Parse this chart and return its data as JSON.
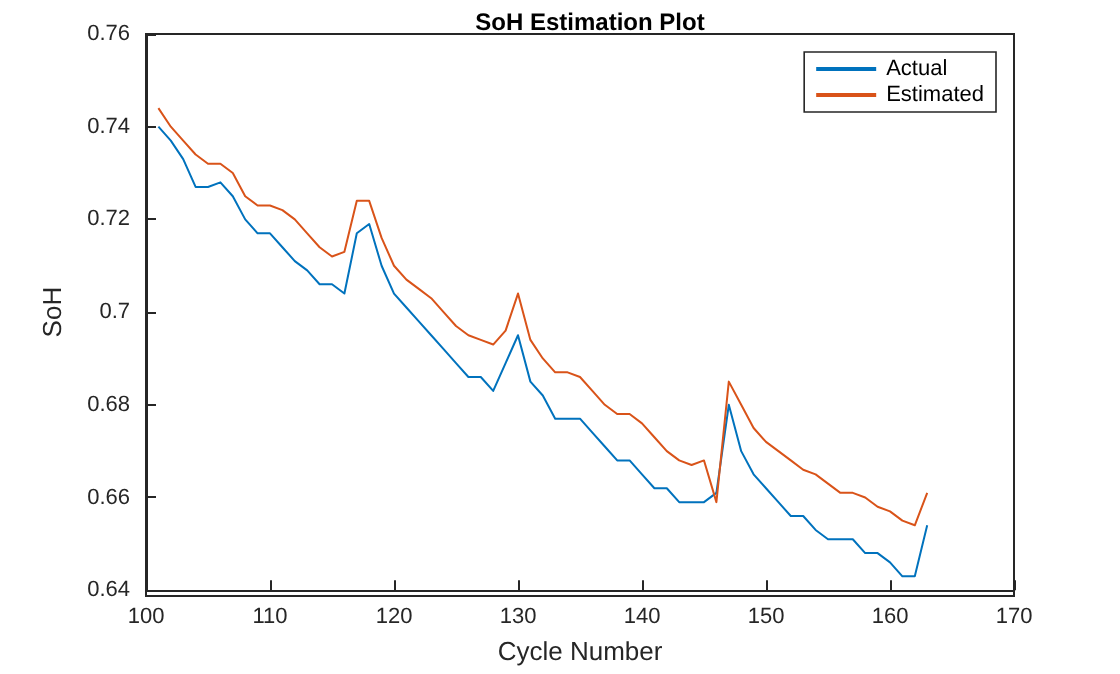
{
  "chart_data": {
    "type": "line",
    "title": "SoH Estimation Plot",
    "xlabel": "Cycle Number",
    "ylabel": "SoH",
    "x": [
      101,
      102,
      103,
      104,
      105,
      106,
      107,
      108,
      109,
      110,
      111,
      112,
      113,
      114,
      115,
      116,
      117,
      118,
      119,
      120,
      121,
      122,
      123,
      124,
      125,
      126,
      127,
      128,
      129,
      130,
      131,
      132,
      133,
      134,
      135,
      136,
      137,
      138,
      139,
      140,
      141,
      142,
      143,
      144,
      145,
      146,
      147,
      148,
      149,
      150,
      151,
      152,
      153,
      154,
      155,
      156,
      157,
      158,
      159,
      160,
      161,
      162,
      163
    ],
    "series": [
      {
        "name": "Actual",
        "color": "#0072bd",
        "values": [
          0.74,
          0.737,
          0.733,
          0.727,
          0.727,
          0.728,
          0.725,
          0.72,
          0.717,
          0.717,
          0.714,
          0.711,
          0.709,
          0.706,
          0.706,
          0.704,
          0.717,
          0.719,
          0.71,
          0.704,
          0.701,
          0.698,
          0.695,
          0.692,
          0.689,
          0.686,
          0.686,
          0.683,
          0.689,
          0.695,
          0.685,
          0.682,
          0.677,
          0.677,
          0.677,
          0.674,
          0.671,
          0.668,
          0.668,
          0.665,
          0.662,
          0.662,
          0.659,
          0.659,
          0.659,
          0.661,
          0.68,
          0.67,
          0.665,
          0.662,
          0.659,
          0.656,
          0.656,
          0.653,
          0.651,
          0.651,
          0.651,
          0.648,
          0.648,
          0.646,
          0.643,
          0.643,
          0.654
        ]
      },
      {
        "name": "Estimated",
        "color": "#d95319",
        "values": [
          0.744,
          0.74,
          0.737,
          0.734,
          0.732,
          0.732,
          0.73,
          0.725,
          0.723,
          0.723,
          0.722,
          0.72,
          0.717,
          0.714,
          0.712,
          0.713,
          0.724,
          0.724,
          0.716,
          0.71,
          0.707,
          0.705,
          0.703,
          0.7,
          0.697,
          0.695,
          0.694,
          0.693,
          0.696,
          0.704,
          0.694,
          0.69,
          0.687,
          0.687,
          0.686,
          0.683,
          0.68,
          0.678,
          0.678,
          0.676,
          0.673,
          0.67,
          0.668,
          0.667,
          0.668,
          0.659,
          0.685,
          0.68,
          0.675,
          0.672,
          0.67,
          0.668,
          0.666,
          0.665,
          0.663,
          0.661,
          0.661,
          0.66,
          0.658,
          0.657,
          0.655,
          0.654,
          0.661
        ]
      }
    ],
    "xlim": [
      100,
      170
    ],
    "xticks": [
      100,
      110,
      120,
      130,
      140,
      150,
      160,
      170
    ],
    "ylim": [
      0.64,
      0.76
    ],
    "yticks": [
      0.64,
      0.66,
      0.68,
      0.7,
      0.72,
      0.74,
      0.76
    ],
    "legend": "top right",
    "grid": false
  }
}
